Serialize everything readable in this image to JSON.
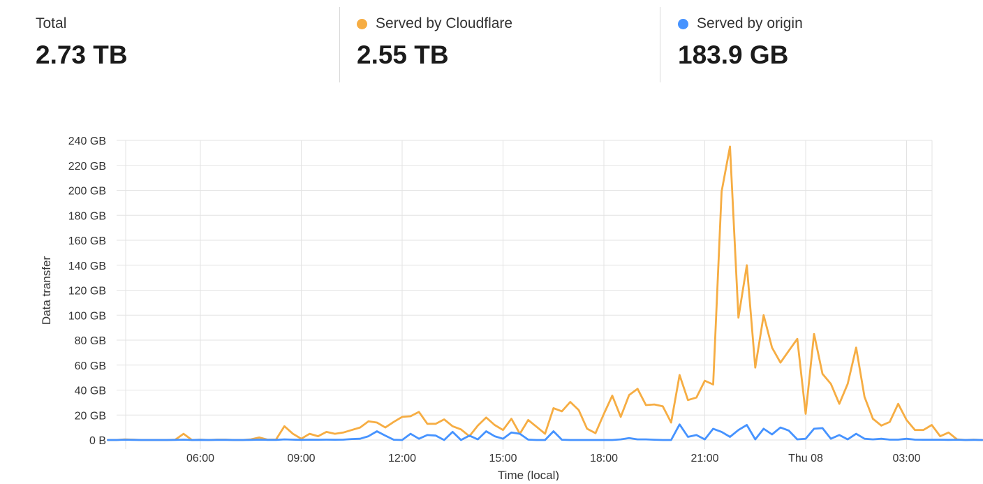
{
  "summary": {
    "total": {
      "label": "Total",
      "value": "2.73 TB"
    },
    "cloudflare": {
      "label": "Served by Cloudflare",
      "value": "2.55 TB",
      "color": "#f6ad43"
    },
    "origin": {
      "label": "Served by origin",
      "value": "183.9 GB",
      "color": "#4693ff"
    }
  },
  "chart_data": {
    "type": "line",
    "xlabel": "Time (local)",
    "ylabel": "Data transfer",
    "x_unit": "hours since 00:00 Wed",
    "x_tick_values": [
      6,
      9,
      12,
      15,
      18,
      21,
      24,
      27
    ],
    "x_tick_labels": [
      "06:00",
      "09:00",
      "12:00",
      "15:00",
      "18:00",
      "21:00",
      "Thu 08",
      "03:00"
    ],
    "xlim": [
      3,
      27.75
    ],
    "y_tick_values": [
      0,
      20,
      40,
      60,
      80,
      100,
      120,
      140,
      160,
      180,
      200,
      220,
      240
    ],
    "y_tick_labels": [
      "0 B",
      "20 GB",
      "40 GB",
      "60 GB",
      "80 GB",
      "100 GB",
      "120 GB",
      "140 GB",
      "160 GB",
      "180 GB",
      "200 GB",
      "220 GB",
      "240 GB"
    ],
    "ylim": [
      0,
      240
    ],
    "grid": true,
    "legend": "none",
    "x_start": 3.25,
    "x_step": 0.25,
    "series": [
      {
        "name": "Served by Cloudflare",
        "color": "#f6ad43",
        "values": [
          0,
          0,
          0.5,
          0.3,
          0,
          0,
          0,
          0,
          0.2,
          5,
          0,
          0.3,
          0,
          0.3,
          0.3,
          0,
          0,
          0.5,
          2,
          0.3,
          0.4,
          11,
          5,
          1,
          5,
          3,
          6.5,
          5,
          6,
          8,
          10,
          15,
          14,
          10,
          14.5,
          18.5,
          19,
          22.5,
          13,
          13,
          16.5,
          11,
          8.5,
          3,
          11.5,
          18,
          12,
          8,
          17,
          5,
          16,
          10.5,
          5,
          25.5,
          23,
          30.5,
          24,
          9,
          5.5,
          21,
          35.5,
          18.5,
          36,
          41,
          28,
          28.5,
          27,
          14,
          52,
          32,
          34,
          47.5,
          44.5,
          199,
          235,
          98,
          140,
          58,
          100,
          74,
          62,
          71.5,
          81,
          21,
          85,
          53,
          45,
          29,
          45,
          74,
          34.5,
          17,
          11.5,
          14.5,
          29,
          16,
          8,
          8,
          12,
          3,
          6,
          0.5,
          0,
          0.3,
          0
        ]
      },
      {
        "name": "Served by origin",
        "color": "#4693ff",
        "values": [
          0,
          0,
          0.2,
          0.1,
          0,
          0,
          0,
          0,
          0.1,
          0.3,
          0,
          0.1,
          0,
          0.1,
          0.1,
          0,
          0,
          0.1,
          0.3,
          0.1,
          0.1,
          0.5,
          0.3,
          0.1,
          0.3,
          0.2,
          0.3,
          0.2,
          0.3,
          0.8,
          1,
          3,
          7,
          3.5,
          0.2,
          0,
          5,
          1,
          4,
          3.5,
          0,
          6.5,
          0,
          3.5,
          0.5,
          7,
          3,
          1,
          6,
          5,
          0.3,
          0,
          0,
          7,
          0.2,
          0,
          0,
          0,
          0,
          0,
          0,
          0.5,
          1.5,
          0.5,
          0.5,
          0.2,
          0,
          0,
          12.5,
          2.5,
          4,
          0.5,
          9,
          6.5,
          2.5,
          8,
          12,
          0.5,
          9,
          4.5,
          10,
          7.5,
          0.5,
          1,
          9,
          9.5,
          1,
          4,
          0.5,
          5,
          1,
          0.5,
          1,
          0.3,
          0.3,
          1,
          0.3,
          0.2,
          0.2,
          0.2,
          0.1,
          0.2,
          0,
          0.1,
          0
        ]
      }
    ]
  }
}
